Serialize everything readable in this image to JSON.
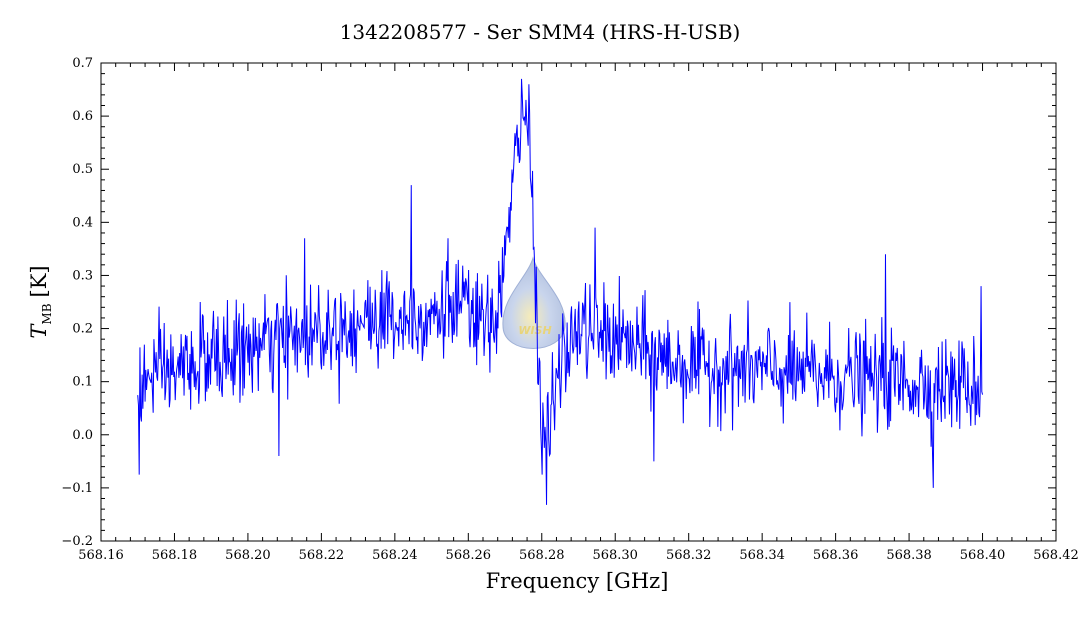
{
  "chart_data": {
    "type": "line",
    "title": "1342208577 - Ser SMM4 (HRS-H-USB)",
    "xlabel": "Frequency [GHz]",
    "ylabel_main": "T",
    "ylabel_sub": "MB",
    "ylabel_unit": "[K]",
    "xlim": [
      568.16,
      568.42
    ],
    "ylim": [
      -0.2,
      0.7
    ],
    "x_ticks": [
      568.16,
      568.18,
      568.2,
      568.22,
      568.24,
      568.26,
      568.28,
      568.3,
      568.32,
      568.34,
      568.36,
      568.38,
      568.4,
      568.42
    ],
    "x_tick_labels": [
      "568.16",
      "568.18",
      "568.20",
      "568.22",
      "568.24",
      "568.26",
      "568.28",
      "568.30",
      "568.32",
      "568.34",
      "568.36",
      "568.38",
      "568.40",
      "568.42"
    ],
    "y_ticks": [
      -0.2,
      -0.1,
      0.0,
      0.1,
      0.2,
      0.3,
      0.4,
      0.5,
      0.6,
      0.7
    ],
    "y_tick_labels": [
      "−0.2",
      "−0.1",
      "0.0",
      "0.1",
      "0.2",
      "0.3",
      "0.4",
      "0.5",
      "0.6",
      "0.7"
    ],
    "grid": false,
    "line_color": "#0000ff",
    "watermark_text": "WISH",
    "series": [
      {
        "x_range": [
          568.17,
          568.4
        ],
        "envelope": {
          "x": [
            568.17,
            568.18,
            568.19,
            568.2,
            568.21,
            568.22,
            568.23,
            568.24,
            568.25,
            568.258,
            568.262,
            568.266,
            568.268,
            568.27,
            568.272,
            568.2735,
            568.275,
            568.2765,
            568.278,
            568.2795,
            568.281,
            568.283,
            568.286,
            568.29,
            568.3,
            568.31,
            568.32,
            568.34,
            568.36,
            568.38,
            568.4
          ],
          "y": [
            0.09,
            0.12,
            0.14,
            0.16,
            0.18,
            0.2,
            0.21,
            0.22,
            0.23,
            0.24,
            0.22,
            0.19,
            0.25,
            0.33,
            0.45,
            0.57,
            0.6,
            0.56,
            0.38,
            0.06,
            -0.02,
            0.05,
            0.15,
            0.2,
            0.18,
            0.15,
            0.13,
            0.12,
            0.11,
            0.1,
            0.09
          ]
        },
        "noise_rms": 0.045,
        "notable_points": [
          {
            "x": 568.1705,
            "y": -0.075
          },
          {
            "x": 568.1745,
            "y": 0.18
          },
          {
            "x": 568.187,
            "y": 0.25
          },
          {
            "x": 568.2085,
            "y": -0.04
          },
          {
            "x": 568.2155,
            "y": 0.37
          },
          {
            "x": 568.2365,
            "y": 0.31
          },
          {
            "x": 568.2445,
            "y": 0.47
          },
          {
            "x": 568.2545,
            "y": 0.37
          },
          {
            "x": 568.2745,
            "y": 0.67
          },
          {
            "x": 568.2765,
            "y": 0.66
          },
          {
            "x": 568.28,
            "y": -0.075
          },
          {
            "x": 568.2945,
            "y": 0.39
          },
          {
            "x": 568.3105,
            "y": -0.05
          },
          {
            "x": 568.3735,
            "y": 0.34
          },
          {
            "x": 568.3865,
            "y": -0.1
          },
          {
            "x": 568.3995,
            "y": 0.28
          }
        ]
      }
    ]
  }
}
